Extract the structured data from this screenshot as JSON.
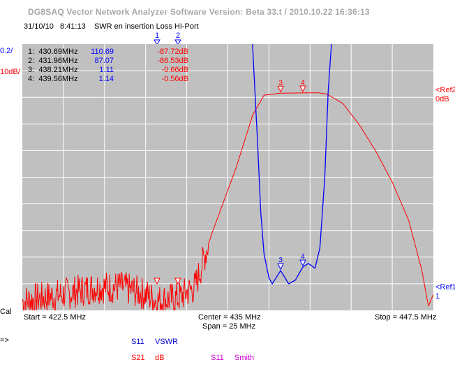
{
  "app_title": "DG8SAQ Vector Network Analyzer Software   Version:  Beta 33.t / 2010.10.22 16:36:13",
  "date": "31/10/10",
  "time": "8:41:13",
  "measurement_title": "SWR en insertion Loss HI-Port",
  "left_scale_blue": "0.2/",
  "left_scale_red": "10dB/",
  "cal_label": "Cal",
  "marker_table": [
    {
      "label": "1:",
      "freq": "430.69MHz",
      "vswr": "110.69",
      "db": "-87.72dB"
    },
    {
      "label": "2:",
      "freq": "431.96MHz",
      "vswr": "87.07",
      "db": "-86.53dB"
    },
    {
      "label": "3:",
      "freq": "438.21MHz",
      "vswr": "1.11",
      "db": "-0.66dB"
    },
    {
      "label": "4:",
      "freq": "439.56MHz",
      "vswr": "1.14",
      "db": "-0.56dB"
    }
  ],
  "top_marker_labels": [
    "1",
    "2"
  ],
  "trace_marker_labels": [
    "3",
    "4"
  ],
  "ref2_label": "<Ref2",
  "ref2_value": "0dB",
  "ref1_label": "<Ref1",
  "ref1_value": "1",
  "start_freq": "Start = 422.5 MHz",
  "center_freq": "Center = 435 MHz",
  "span": "Span = 25 MHz",
  "stop_freq": "Stop = 447.5 MHz",
  "arrow_label": "=>",
  "legend": [
    {
      "param": "S11",
      "format": "VSWR",
      "color": "#0000cc"
    },
    {
      "param": "S21",
      "format": "dB",
      "color": "#ff0000"
    },
    {
      "param": "S11",
      "format": "Smith",
      "color": "#cc00cc"
    }
  ],
  "colors": {
    "blue_trace": "#0000ff",
    "red_trace": "#ff0000",
    "plot_bg": "#c0c0c0",
    "grid": "#ffffff"
  },
  "chart_data": {
    "type": "line",
    "x_range_mhz": [
      422.5,
      447.5
    ],
    "series": [
      {
        "name": "S21",
        "format": "dB",
        "y_range": [
          -100,
          0
        ],
        "x": [
          422.5,
          425,
          427,
          428.5,
          430,
          430.69,
          431.96,
          433,
          434,
          435.5,
          436.5,
          437.2,
          438.21,
          439.56,
          440.5,
          441,
          442,
          443,
          444,
          445,
          446,
          446.8,
          447.2,
          447.5
        ],
        "y": [
          -88,
          -85,
          -82,
          -82,
          -85,
          -87.72,
          -86.53,
          -82,
          -60,
          -32,
          -10,
          -1.5,
          -0.66,
          -0.56,
          -0.5,
          -1,
          -5,
          -14,
          -25,
          -38,
          -54,
          -75,
          -90,
          -85
        ]
      },
      {
        "name": "S11",
        "format": "VSWR",
        "y_range": [
          1,
          3
        ],
        "x": [
          436.5,
          436.8,
          437.0,
          437.2,
          437.5,
          437.7,
          438.21,
          438.7,
          439.1,
          439.56,
          439.9,
          440.3,
          440.6,
          440.9,
          441.1,
          441.3
        ],
        "y": [
          3.0,
          2.2,
          1.6,
          1.25,
          1.05,
          1.0,
          1.11,
          1.0,
          1.03,
          1.14,
          1.17,
          1.13,
          1.3,
          1.9,
          2.6,
          3.0
        ]
      }
    ]
  }
}
